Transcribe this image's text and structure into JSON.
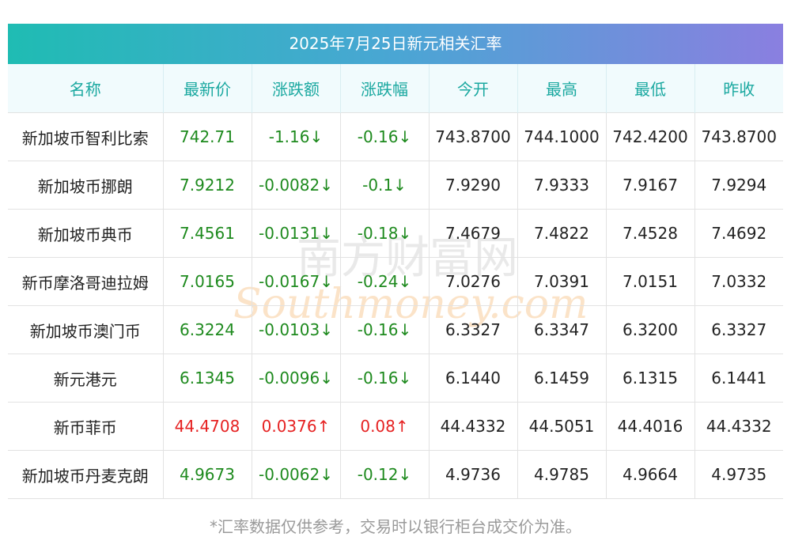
{
  "title": "2025年7月25日新元相关汇率",
  "columns": [
    "名称",
    "最新价",
    "涨跌额",
    "涨跌幅",
    "今开",
    "最高",
    "最低",
    "昨收"
  ],
  "rows": [
    {
      "name": "新加坡币智利比索",
      "latest": "742.71",
      "change": "-1.16↓",
      "pct": "-0.16↓",
      "open": "743.8700",
      "high": "744.1000",
      "low": "742.4200",
      "prev": "743.8700",
      "dir": "down"
    },
    {
      "name": "新加坡币挪朗",
      "latest": "7.9212",
      "change": "-0.0082↓",
      "pct": "-0.1↓",
      "open": "7.9290",
      "high": "7.9333",
      "low": "7.9167",
      "prev": "7.9294",
      "dir": "down"
    },
    {
      "name": "新加坡币典币",
      "latest": "7.4561",
      "change": "-0.0131↓",
      "pct": "-0.18↓",
      "open": "7.4679",
      "high": "7.4822",
      "low": "7.4528",
      "prev": "7.4692",
      "dir": "down"
    },
    {
      "name": "新币摩洛哥迪拉姆",
      "latest": "7.0165",
      "change": "-0.0167↓",
      "pct": "-0.24↓",
      "open": "7.0276",
      "high": "7.0391",
      "low": "7.0151",
      "prev": "7.0332",
      "dir": "down"
    },
    {
      "name": "新加坡币澳门币",
      "latest": "6.3224",
      "change": "-0.0103↓",
      "pct": "-0.16↓",
      "open": "6.3327",
      "high": "6.3347",
      "low": "6.3200",
      "prev": "6.3327",
      "dir": "down"
    },
    {
      "name": "新元港元",
      "latest": "6.1345",
      "change": "-0.0096↓",
      "pct": "-0.16↓",
      "open": "6.1440",
      "high": "6.1459",
      "low": "6.1315",
      "prev": "6.1441",
      "dir": "down"
    },
    {
      "name": "新币菲币",
      "latest": "44.4708",
      "change": "0.0376↑",
      "pct": "0.08↑",
      "open": "44.4332",
      "high": "44.5051",
      "low": "44.4016",
      "prev": "44.4332",
      "dir": "up"
    },
    {
      "name": "新加坡币丹麦克朗",
      "latest": "4.9673",
      "change": "-0.0062↓",
      "pct": "-0.12↓",
      "open": "4.9736",
      "high": "4.9785",
      "low": "4.9664",
      "prev": "4.9735",
      "dir": "down"
    }
  ],
  "watermark": {
    "cn": "南方财富网",
    "en": "Southmoney.com"
  },
  "footnote": "*汇率数据仅供参考，交易时以银行柜台成交价为准。",
  "colors": {
    "down": "#1e8a1e",
    "up": "#e62222",
    "header_text": "#1aa8a0",
    "title_gradient_start": "#1fbcb3",
    "title_gradient_end": "#8a7fe0"
  }
}
